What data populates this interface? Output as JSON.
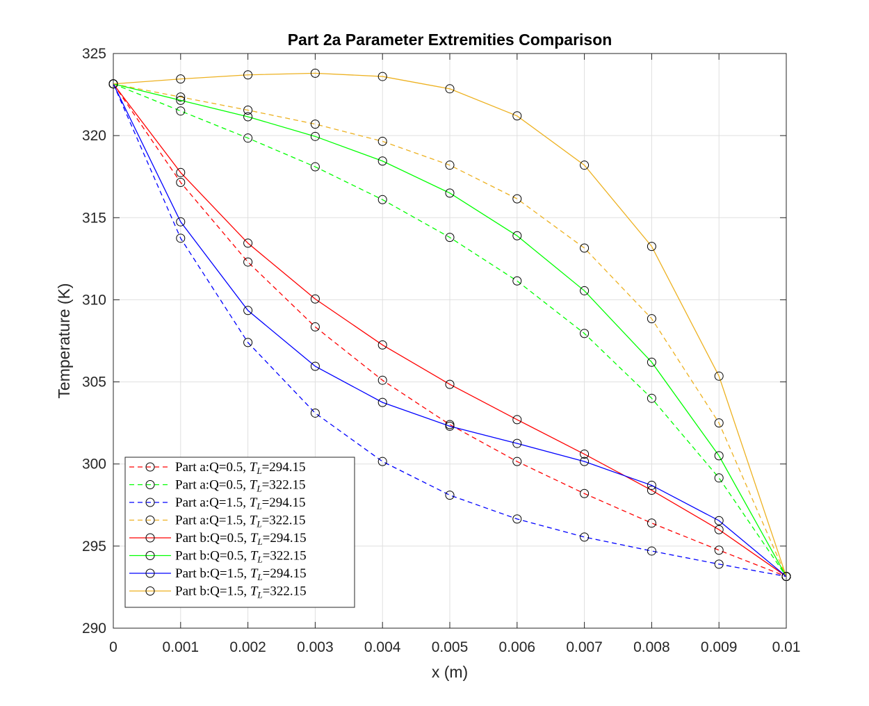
{
  "chart_data": {
    "type": "line",
    "title": "Part 2a Parameter Extremities Comparison",
    "xlabel": "x (m)",
    "ylabel": "Temperature (K)",
    "xlim": [
      0,
      0.01
    ],
    "ylim": [
      290,
      325
    ],
    "xticks": [
      0,
      0.001,
      0.002,
      0.003,
      0.004,
      0.005,
      0.006,
      0.007,
      0.008,
      0.009,
      0.01
    ],
    "xtick_labels": [
      "0",
      "0.001",
      "0.002",
      "0.003",
      "0.004",
      "0.005",
      "0.006",
      "0.007",
      "0.008",
      "0.009",
      "0.01"
    ],
    "yticks": [
      290,
      295,
      300,
      305,
      310,
      315,
      320,
      325
    ],
    "ytick_labels": [
      "290",
      "295",
      "300",
      "305",
      "310",
      "315",
      "320",
      "325"
    ],
    "grid": true,
    "legend_position": "bottom-left",
    "marker": "open-circle",
    "marker_color": "#000000",
    "x": [
      0,
      0.001,
      0.002,
      0.003,
      0.004,
      0.005,
      0.006,
      0.007,
      0.008,
      0.009,
      0.01
    ],
    "series": [
      {
        "label_prefix": "Part a:Q=0.5, ",
        "label_sym": "T",
        "label_sub": "L",
        "label_suffix": "=294.15",
        "color": "#ff0000",
        "dash": "dashed",
        "values": [
          323.15,
          317.15,
          312.3,
          308.35,
          305.1,
          302.4,
          300.15,
          298.2,
          296.4,
          294.75,
          293.15
        ]
      },
      {
        "label_prefix": "Part a:Q=0.5, ",
        "label_sym": "T",
        "label_sub": "L",
        "label_suffix": "=322.15",
        "color": "#00ff00",
        "dash": "dashed",
        "values": [
          323.15,
          321.5,
          319.85,
          318.1,
          316.1,
          313.8,
          311.15,
          307.95,
          304.0,
          299.15,
          293.15
        ]
      },
      {
        "label_prefix": "Part a:Q=1.5, ",
        "label_sym": "T",
        "label_sub": "L",
        "label_suffix": "=294.15",
        "color": "#0000ff",
        "dash": "dashed",
        "values": [
          323.15,
          313.75,
          307.4,
          303.1,
          300.15,
          298.1,
          296.65,
          295.55,
          294.7,
          293.9,
          293.15
        ]
      },
      {
        "label_prefix": "Part a:Q=1.5, ",
        "label_sym": "T",
        "label_sub": "L",
        "label_suffix": "=322.15",
        "color": "#edb120",
        "dash": "dashed",
        "values": [
          323.15,
          322.35,
          321.55,
          320.7,
          319.65,
          318.2,
          316.15,
          313.15,
          308.85,
          302.5,
          293.15
        ]
      },
      {
        "label_prefix": "Part b:Q=0.5, ",
        "label_sym": "T",
        "label_sub": "L",
        "label_suffix": "=294.15",
        "color": "#ff0000",
        "dash": "solid",
        "values": [
          323.15,
          317.75,
          313.45,
          310.05,
          307.25,
          304.85,
          302.7,
          300.6,
          298.4,
          296.0,
          293.15
        ]
      },
      {
        "label_prefix": "Part b:Q=0.5, ",
        "label_sym": "T",
        "label_sub": "L",
        "label_suffix": "=322.15",
        "color": "#00ff00",
        "dash": "solid",
        "values": [
          323.15,
          322.15,
          321.15,
          319.95,
          318.45,
          316.5,
          313.9,
          310.55,
          306.2,
          300.5,
          293.15
        ]
      },
      {
        "label_prefix": "Part b:Q=1.5, ",
        "label_sym": "T",
        "label_sub": "L",
        "label_suffix": "=294.15",
        "color": "#0000ff",
        "dash": "solid",
        "values": [
          323.15,
          314.75,
          309.35,
          305.95,
          303.75,
          302.3,
          301.25,
          300.15,
          298.7,
          296.55,
          293.15
        ]
      },
      {
        "label_prefix": "Part b:Q=1.5, ",
        "label_sym": "T",
        "label_sub": "L",
        "label_suffix": "=322.15",
        "color": "#edb120",
        "dash": "solid",
        "values": [
          323.15,
          323.45,
          323.7,
          323.8,
          323.6,
          322.85,
          321.2,
          318.2,
          313.25,
          305.35,
          293.15
        ]
      }
    ]
  }
}
